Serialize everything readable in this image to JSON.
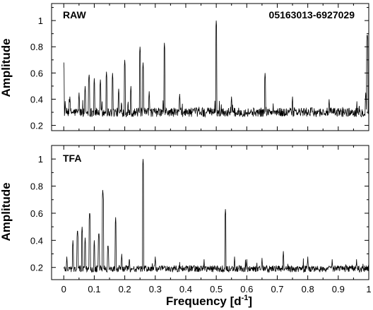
{
  "chart_data": [
    {
      "type": "line",
      "panel_label": "RAW",
      "annotation": "05163013-6927029",
      "ylabel": "Amplitude",
      "xlim": [
        -0.04,
        1.0
      ],
      "ylim": [
        0.16,
        1.13
      ],
      "yticks": [
        0.2,
        0.4,
        0.6,
        0.8,
        1
      ],
      "ytick_labels": [
        "0.2",
        "0.4",
        "0.6",
        "0.8",
        "1"
      ],
      "baseline": 0.3,
      "noise": 0.035,
      "peaks": [
        {
          "x": 0.0,
          "y": 0.68
        },
        {
          "x": 0.02,
          "y": 0.42
        },
        {
          "x": 0.05,
          "y": 0.45
        },
        {
          "x": 0.07,
          "y": 0.5
        },
        {
          "x": 0.083,
          "y": 0.6
        },
        {
          "x": 0.1,
          "y": 0.56
        },
        {
          "x": 0.12,
          "y": 0.55
        },
        {
          "x": 0.14,
          "y": 0.61
        },
        {
          "x": 0.16,
          "y": 0.6
        },
        {
          "x": 0.18,
          "y": 0.48
        },
        {
          "x": 0.2,
          "y": 0.7
        },
        {
          "x": 0.22,
          "y": 0.5
        },
        {
          "x": 0.25,
          "y": 0.8
        },
        {
          "x": 0.26,
          "y": 0.68
        },
        {
          "x": 0.28,
          "y": 0.46
        },
        {
          "x": 0.33,
          "y": 0.83
        },
        {
          "x": 0.38,
          "y": 0.44
        },
        {
          "x": 0.5,
          "y": 1.0
        },
        {
          "x": 0.55,
          "y": 0.42
        },
        {
          "x": 0.66,
          "y": 0.6
        },
        {
          "x": 0.75,
          "y": 0.42
        },
        {
          "x": 0.87,
          "y": 0.4
        },
        {
          "x": 0.995,
          "y": 0.91
        },
        {
          "x": 0.99,
          "y": 0.45
        }
      ]
    },
    {
      "type": "line",
      "panel_label": "TFA",
      "ylabel": "Amplitude",
      "xlabel": "Frequency [d",
      "xlabel_sup": "-1",
      "xlabel_end": "]",
      "xlim": [
        -0.04,
        1.0
      ],
      "ylim": [
        0.11,
        1.1
      ],
      "xticks": [
        0,
        0.1,
        0.2,
        0.3,
        0.4,
        0.5,
        0.6,
        0.7,
        0.8,
        0.9,
        1
      ],
      "xtick_labels": [
        "0",
        "0.1",
        "0.2",
        "0.3",
        "0.4",
        "0.5",
        "0.6",
        "0.7",
        "0.8",
        "0.9",
        "1"
      ],
      "yticks": [
        0.2,
        0.4,
        0.6,
        0.8,
        1
      ],
      "ytick_labels": [
        "0.2",
        "0.4",
        "0.6",
        "0.8",
        "1"
      ],
      "baseline": 0.19,
      "noise": 0.025,
      "peaks": [
        {
          "x": 0.01,
          "y": 0.28
        },
        {
          "x": 0.03,
          "y": 0.4
        },
        {
          "x": 0.045,
          "y": 0.49
        },
        {
          "x": 0.06,
          "y": 0.5
        },
        {
          "x": 0.07,
          "y": 0.42
        },
        {
          "x": 0.085,
          "y": 0.62
        },
        {
          "x": 0.1,
          "y": 0.4
        },
        {
          "x": 0.115,
          "y": 0.47
        },
        {
          "x": 0.128,
          "y": 0.78
        },
        {
          "x": 0.145,
          "y": 0.38
        },
        {
          "x": 0.17,
          "y": 0.57
        },
        {
          "x": 0.19,
          "y": 0.3
        },
        {
          "x": 0.215,
          "y": 0.28
        },
        {
          "x": 0.26,
          "y": 1.0
        },
        {
          "x": 0.3,
          "y": 0.28
        },
        {
          "x": 0.46,
          "y": 0.26
        },
        {
          "x": 0.53,
          "y": 0.63
        },
        {
          "x": 0.56,
          "y": 0.28
        },
        {
          "x": 0.6,
          "y": 0.26
        },
        {
          "x": 0.65,
          "y": 0.27
        },
        {
          "x": 0.72,
          "y": 0.32
        },
        {
          "x": 0.8,
          "y": 0.28
        },
        {
          "x": 0.88,
          "y": 0.26
        },
        {
          "x": 0.96,
          "y": 0.26
        }
      ]
    }
  ]
}
